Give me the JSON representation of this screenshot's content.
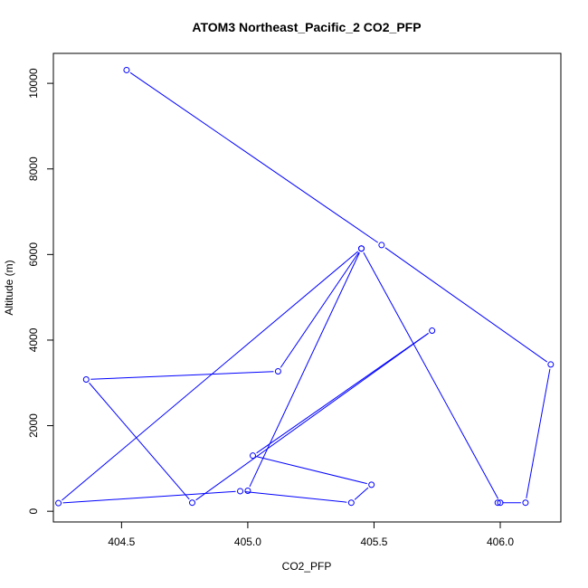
{
  "chart_data": {
    "type": "line",
    "title": "ATOM3 Northeast_Pacific_2 CO2_PFP",
    "xlabel": "CO2_PFP",
    "ylabel": "Altitude (m)",
    "xlim": [
      404.23,
      406.24
    ],
    "ylim": [
      -250,
      10700
    ],
    "x_ticks": [
      404.5,
      405.0,
      405.5,
      406.0
    ],
    "x_tick_labels": [
      "404.5",
      "405.0",
      "405.5",
      "406.0"
    ],
    "y_ticks": [
      0,
      2000,
      4000,
      6000,
      8000,
      10000
    ],
    "y_tick_labels": [
      "0",
      "2000",
      "4000",
      "6000",
      "8000",
      "10000"
    ],
    "grid": false,
    "series": [
      {
        "color": "#0000ff",
        "marker": "open-circle",
        "points": [
          {
            "x": 404.52,
            "y": 10310
          },
          {
            "x": 405.53,
            "y": 6220
          },
          {
            "x": 406.2,
            "y": 3430
          },
          {
            "x": 406.1,
            "y": 200
          },
          {
            "x": 405.99,
            "y": 200
          },
          {
            "x": 406.0,
            "y": 200
          },
          {
            "x": 405.45,
            "y": 6140
          },
          {
            "x": 405.12,
            "y": 3270
          },
          {
            "x": 404.36,
            "y": 3080
          },
          {
            "x": 404.78,
            "y": 200
          },
          {
            "x": 405.73,
            "y": 4220
          },
          {
            "x": 405.02,
            "y": 1300
          },
          {
            "x": 405.49,
            "y": 620
          },
          {
            "x": 405.41,
            "y": 200
          },
          {
            "x": 404.97,
            "y": 470
          },
          {
            "x": 404.25,
            "y": 190
          },
          {
            "x": 405.45,
            "y": 6140
          },
          {
            "x": 405.0,
            "y": 480
          }
        ]
      }
    ]
  }
}
